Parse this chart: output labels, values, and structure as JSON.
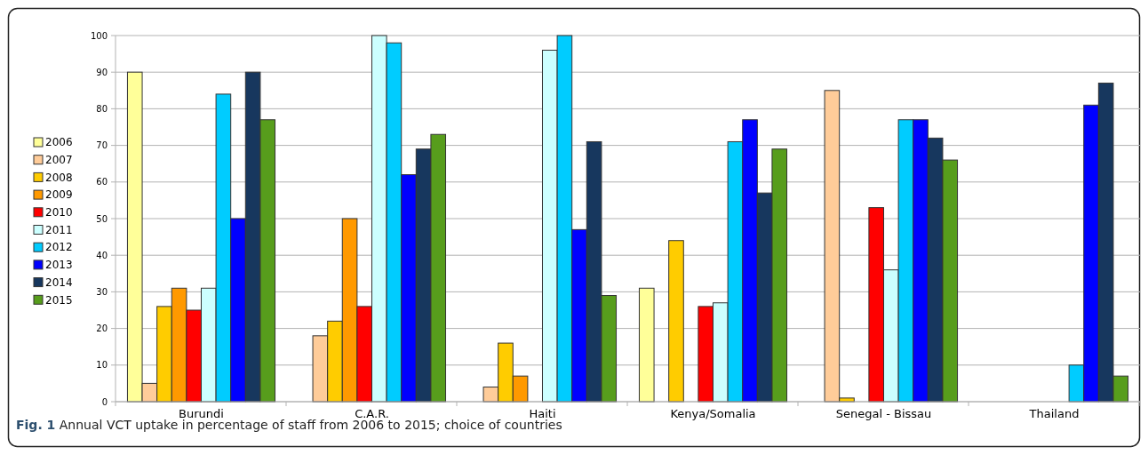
{
  "chart_data": {
    "type": "bar",
    "categories": [
      "Burundi",
      "C.A.R.",
      "Haiti",
      "Kenya/Somalia",
      "Senegal - Bissau",
      "Thailand"
    ],
    "series": [
      {
        "name": "2006",
        "color": "#ffff99",
        "values": [
          90,
          null,
          null,
          31,
          null,
          null
        ]
      },
      {
        "name": "2007",
        "color": "#ffcc99",
        "values": [
          5,
          18,
          4,
          null,
          85,
          null
        ]
      },
      {
        "name": "2008",
        "color": "#ffcc00",
        "values": [
          26,
          22,
          16,
          44,
          1,
          null
        ]
      },
      {
        "name": "2009",
        "color": "#ff9900",
        "values": [
          31,
          50,
          7,
          null,
          null,
          null
        ]
      },
      {
        "name": "2010",
        "color": "#ff0000",
        "values": [
          25,
          26,
          null,
          26,
          53,
          null
        ]
      },
      {
        "name": "2011",
        "color": "#ccffff",
        "values": [
          31,
          100,
          96,
          27,
          36,
          null
        ]
      },
      {
        "name": "2012",
        "color": "#00ccff",
        "values": [
          84,
          98,
          100,
          71,
          77,
          10
        ]
      },
      {
        "name": "2013",
        "color": "#0000ff",
        "values": [
          50,
          62,
          47,
          77,
          77,
          81
        ]
      },
      {
        "name": "2014",
        "color": "#17375e",
        "values": [
          90,
          69,
          71,
          57,
          72,
          87
        ]
      },
      {
        "name": "2015",
        "color": "#579d1c",
        "values": [
          77,
          73,
          29,
          69,
          66,
          7
        ]
      }
    ],
    "ylim": [
      0,
      100
    ],
    "yticks": [
      0,
      10,
      20,
      30,
      40,
      50,
      60,
      70,
      80,
      90,
      100
    ],
    "grid": "y",
    "legend": "left",
    "annotations": [
      "Fig. 1 Annual VCT uptake in percentage of staff from 2006 to 2015; choice of countries"
    ]
  }
}
